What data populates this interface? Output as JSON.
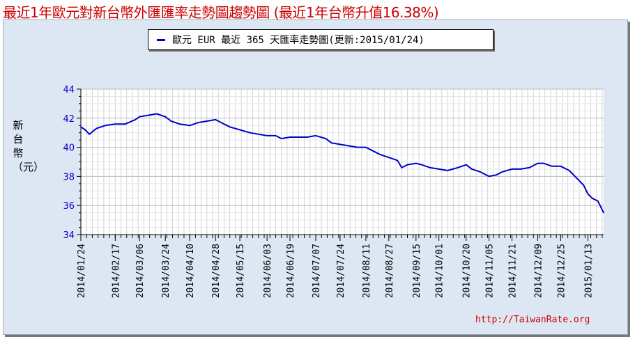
{
  "page": {
    "title": "最近1年歐元對新台幣外匯匯率走勢圖趨勢圖 (最近1年台幣升值16.38%)",
    "credit": "http://TaiwanRate.org"
  },
  "chart_data": {
    "type": "line",
    "title": "",
    "legend": "歐元 EUR 最近 365 天匯率走勢圖(更新:2015/01/24)",
    "legend_position": "top-center",
    "xlabel": "",
    "ylabel": "新台幣（元）",
    "ylim": [
      34,
      44
    ],
    "yticks": [
      34,
      36,
      38,
      40,
      42,
      44
    ],
    "grid": true,
    "line_color": "#0000cc",
    "x_range": [
      "2014/01/24",
      "2015/01/24"
    ],
    "xtick_labels": [
      "2014/01/24",
      "2014/02/17",
      "2014/03/06",
      "2014/03/24",
      "2014/04/10",
      "2014/04/28",
      "2014/05/15",
      "2014/06/03",
      "2014/06/19",
      "2014/07/07",
      "2014/07/24",
      "2014/08/11",
      "2014/08/27",
      "2014/09/15",
      "2014/10/01",
      "2014/10/20",
      "2014/11/05",
      "2014/11/21",
      "2014/12/09",
      "2014/12/25",
      "2015/01/13"
    ],
    "series": [
      {
        "x": [
          "2014/01/24",
          "2014/01/27",
          "2014/01/30",
          "2014/02/04",
          "2014/02/10",
          "2014/02/17",
          "2014/02/24",
          "2014/03/03",
          "2014/03/06",
          "2014/03/12",
          "2014/03/18",
          "2014/03/24",
          "2014/03/28",
          "2014/04/03",
          "2014/04/10",
          "2014/04/16",
          "2014/04/22",
          "2014/04/28",
          "2014/05/02",
          "2014/05/08",
          "2014/05/15",
          "2014/05/22",
          "2014/05/28",
          "2014/06/03",
          "2014/06/09",
          "2014/06/13",
          "2014/06/19",
          "2014/06/25",
          "2014/07/01",
          "2014/07/07",
          "2014/07/14",
          "2014/07/18",
          "2014/07/24",
          "2014/07/30",
          "2014/08/05",
          "2014/08/11",
          "2014/08/15",
          "2014/08/21",
          "2014/08/27",
          "2014/09/02",
          "2014/09/05",
          "2014/09/09",
          "2014/09/15",
          "2014/09/19",
          "2014/09/25",
          "2014/10/01",
          "2014/10/07",
          "2014/10/14",
          "2014/10/20",
          "2014/10/24",
          "2014/10/30",
          "2014/11/05",
          "2014/11/10",
          "2014/11/14",
          "2014/11/21",
          "2014/11/27",
          "2014/12/03",
          "2014/12/09",
          "2014/12/13",
          "2014/12/19",
          "2014/12/25",
          "2014/12/31",
          "2015/01/06",
          "2015/01/10",
          "2015/01/13",
          "2015/01/16",
          "2015/01/20",
          "2015/01/24"
        ],
        "values": [
          41.4,
          41.2,
          40.9,
          41.3,
          41.5,
          41.6,
          41.6,
          41.9,
          42.1,
          42.2,
          42.3,
          42.1,
          41.8,
          41.6,
          41.5,
          41.7,
          41.8,
          41.9,
          41.7,
          41.4,
          41.2,
          41.0,
          40.9,
          40.8,
          40.8,
          40.6,
          40.7,
          40.7,
          40.7,
          40.8,
          40.6,
          40.3,
          40.2,
          40.1,
          40.0,
          40.0,
          39.8,
          39.5,
          39.3,
          39.1,
          38.6,
          38.8,
          38.9,
          38.8,
          38.6,
          38.5,
          38.4,
          38.6,
          38.8,
          38.5,
          38.3,
          38.0,
          38.1,
          38.3,
          38.5,
          38.5,
          38.6,
          38.9,
          38.9,
          38.7,
          38.7,
          38.4,
          37.8,
          37.4,
          36.8,
          36.5,
          36.3,
          35.5
        ]
      }
    ]
  }
}
